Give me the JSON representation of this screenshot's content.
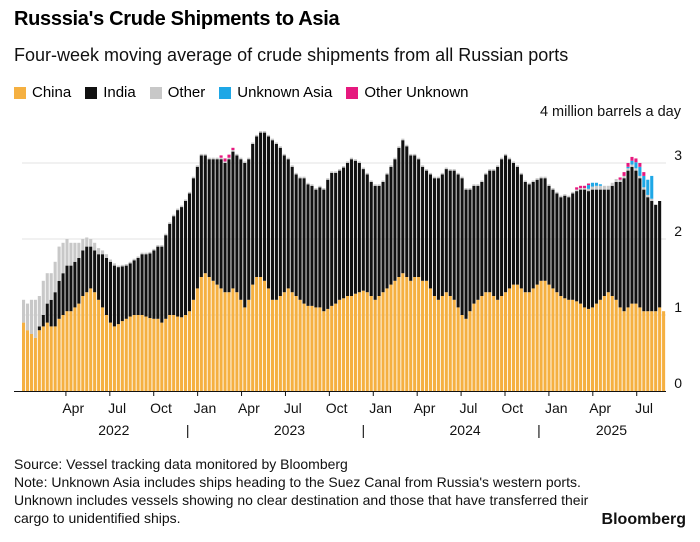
{
  "header": {
    "title": "Russsia's Crude Shipments to Asia",
    "subtitle": "Four-week moving average of crude shipments from all Russian ports"
  },
  "legend": [
    {
      "label": "China",
      "color": "#f5b041"
    },
    {
      "label": "India",
      "color": "#111111"
    },
    {
      "label": "Other",
      "color": "#c8c8c8"
    },
    {
      "label": "Unknown Asia",
      "color": "#1ea7e6"
    },
    {
      "label": "Other Unknown",
      "color": "#e6187e"
    }
  ],
  "unit_label": "4 million barrels a day",
  "footer": {
    "source": "Source: Vessel tracking data monitored by Bloomberg",
    "note": "Note: Unknown Asia includes ships heading to the Suez Canal from Russia's western ports. Unknown includes vessels showing no clear destination and those that have transferred their cargo to unidentified ships."
  },
  "brand": "Bloomberg",
  "chart_data": {
    "type": "bar",
    "stacked": true,
    "bar_interval": "weekly",
    "x_range": [
      "2022-01",
      "2025-08"
    ],
    "ylim": [
      0,
      3.5
    ],
    "y_ticks": [
      "0",
      "1",
      "2",
      "3"
    ],
    "x_tick_labels": [
      "Apr",
      "Jul",
      "Oct",
      "Jan",
      "Apr",
      "Jul",
      "Oct",
      "Jan",
      "Apr",
      "Jul",
      "Oct",
      "Jan",
      "Apr",
      "Jul"
    ],
    "year_labels": [
      "2022",
      "2023",
      "2024",
      "2025"
    ],
    "series": [
      {
        "name": "China",
        "color": "#f5b041",
        "values": [
          0.9,
          0.8,
          0.75,
          0.7,
          0.8,
          0.85,
          0.9,
          0.85,
          0.85,
          0.95,
          1.0,
          1.05,
          1.05,
          1.1,
          1.15,
          1.25,
          1.3,
          1.35,
          1.3,
          1.2,
          1.1,
          1.0,
          0.9,
          0.85,
          0.88,
          0.92,
          0.95,
          0.98,
          1.0,
          1.0,
          1.0,
          0.98,
          0.96,
          0.95,
          0.95,
          0.9,
          0.95,
          1.0,
          1.0,
          0.98,
          0.97,
          1.0,
          1.05,
          1.2,
          1.35,
          1.5,
          1.55,
          1.5,
          1.45,
          1.4,
          1.35,
          1.3,
          1.3,
          1.35,
          1.3,
          1.2,
          1.1,
          1.2,
          1.4,
          1.5,
          1.5,
          1.45,
          1.35,
          1.2,
          1.2,
          1.25,
          1.3,
          1.35,
          1.3,
          1.25,
          1.2,
          1.15,
          1.12,
          1.12,
          1.1,
          1.1,
          1.05,
          1.08,
          1.12,
          1.15,
          1.2,
          1.22,
          1.25,
          1.25,
          1.28,
          1.3,
          1.32,
          1.3,
          1.25,
          1.2,
          1.25,
          1.3,
          1.35,
          1.4,
          1.45,
          1.5,
          1.55,
          1.5,
          1.45,
          1.5,
          1.5,
          1.45,
          1.45,
          1.35,
          1.25,
          1.2,
          1.25,
          1.3,
          1.25,
          1.2,
          1.1,
          1.0,
          0.95,
          1.05,
          1.15,
          1.2,
          1.25,
          1.3,
          1.3,
          1.25,
          1.2,
          1.25,
          1.3,
          1.35,
          1.4,
          1.4,
          1.35,
          1.3,
          1.3,
          1.35,
          1.4,
          1.45,
          1.45,
          1.4,
          1.35,
          1.3,
          1.25,
          1.22,
          1.2,
          1.2,
          1.18,
          1.15,
          1.1,
          1.08,
          1.1,
          1.15,
          1.2,
          1.25,
          1.3,
          1.25,
          1.2,
          1.1,
          1.05,
          1.1,
          1.15,
          1.15,
          1.1,
          1.05,
          1.05,
          1.05,
          1.05,
          1.1,
          1.05
        ]
      },
      {
        "name": "India",
        "color": "#111111",
        "values": [
          0.0,
          0.0,
          0.0,
          0.0,
          0.05,
          0.15,
          0.25,
          0.35,
          0.45,
          0.5,
          0.55,
          0.6,
          0.6,
          0.6,
          0.6,
          0.6,
          0.6,
          0.55,
          0.55,
          0.6,
          0.7,
          0.75,
          0.8,
          0.8,
          0.75,
          0.72,
          0.7,
          0.7,
          0.72,
          0.75,
          0.8,
          0.82,
          0.85,
          0.9,
          0.95,
          1.0,
          1.1,
          1.2,
          1.3,
          1.4,
          1.45,
          1.5,
          1.55,
          1.6,
          1.6,
          1.6,
          1.55,
          1.55,
          1.6,
          1.65,
          1.7,
          1.7,
          1.75,
          1.8,
          1.8,
          1.85,
          1.9,
          1.85,
          1.85,
          1.85,
          1.9,
          1.95,
          2.0,
          2.1,
          2.05,
          1.95,
          1.8,
          1.7,
          1.65,
          1.6,
          1.6,
          1.65,
          1.6,
          1.58,
          1.55,
          1.58,
          1.6,
          1.7,
          1.75,
          1.72,
          1.7,
          1.72,
          1.75,
          1.8,
          1.75,
          1.7,
          1.6,
          1.55,
          1.5,
          1.5,
          1.45,
          1.45,
          1.5,
          1.55,
          1.6,
          1.7,
          1.75,
          1.72,
          1.65,
          1.6,
          1.55,
          1.5,
          1.45,
          1.5,
          1.55,
          1.6,
          1.6,
          1.62,
          1.65,
          1.7,
          1.75,
          1.8,
          1.7,
          1.6,
          1.55,
          1.5,
          1.5,
          1.55,
          1.6,
          1.65,
          1.75,
          1.8,
          1.8,
          1.7,
          1.6,
          1.55,
          1.5,
          1.45,
          1.42,
          1.4,
          1.38,
          1.35,
          1.35,
          1.3,
          1.3,
          1.3,
          1.3,
          1.35,
          1.35,
          1.4,
          1.45,
          1.5,
          1.55,
          1.55,
          1.55,
          1.5,
          1.45,
          1.4,
          1.35,
          1.45,
          1.55,
          1.65,
          1.75,
          1.8,
          1.8,
          1.75,
          1.7,
          1.6,
          1.5,
          1.45,
          1.4,
          1.4
        ]
      },
      {
        "name": "Other",
        "color": "#c8c8c8",
        "values": [
          0.3,
          0.35,
          0.45,
          0.5,
          0.4,
          0.45,
          0.4,
          0.35,
          0.4,
          0.45,
          0.4,
          0.35,
          0.3,
          0.25,
          0.2,
          0.15,
          0.12,
          0.1,
          0.1,
          0.08,
          0.05,
          0.05,
          0.03,
          0.03,
          0.02,
          0.02,
          0.02,
          0.02,
          0.02,
          0.02,
          0.02,
          0.02,
          0.02,
          0.02,
          0.02,
          0.02,
          0.02,
          0.02,
          0.02,
          0.02,
          0.02,
          0.02,
          0.02,
          0.02,
          0.02,
          0.02,
          0.02,
          0.02,
          0.02,
          0.02,
          0.02,
          0.02,
          0.02,
          0.02,
          0.02,
          0.02,
          0.02,
          0.02,
          0.02,
          0.02,
          0.02,
          0.02,
          0.02,
          0.02,
          0.02,
          0.02,
          0.02,
          0.02,
          0.02,
          0.02,
          0.02,
          0.02,
          0.02,
          0.02,
          0.02,
          0.02,
          0.02,
          0.02,
          0.02,
          0.02,
          0.02,
          0.02,
          0.02,
          0.02,
          0.02,
          0.02,
          0.02,
          0.02,
          0.02,
          0.02,
          0.02,
          0.02,
          0.02,
          0.02,
          0.02,
          0.02,
          0.02,
          0.02,
          0.02,
          0.02,
          0.02,
          0.02,
          0.02,
          0.02,
          0.02,
          0.02,
          0.02,
          0.02,
          0.02,
          0.02,
          0.02,
          0.02,
          0.02,
          0.02,
          0.02,
          0.02,
          0.02,
          0.02,
          0.02,
          0.02,
          0.02,
          0.02,
          0.02,
          0.02,
          0.02,
          0.02,
          0.02,
          0.02,
          0.02,
          0.02,
          0.02,
          0.02,
          0.02,
          0.02,
          0.02,
          0.02,
          0.02,
          0.02,
          0.02,
          0.02,
          0.02,
          0.02,
          0.02,
          0.03,
          0.04,
          0.05,
          0.05,
          0.05,
          0.05,
          0.04,
          0.04,
          0.03,
          0.03,
          0.03,
          0.03,
          0.03,
          0.03,
          0.03,
          0.03,
          0.03
        ]
      },
      {
        "name": "Unknown Asia",
        "color": "#1ea7e6",
        "values": [
          0,
          0,
          0,
          0,
          0,
          0,
          0,
          0,
          0,
          0,
          0,
          0,
          0,
          0,
          0,
          0,
          0,
          0,
          0,
          0,
          0,
          0,
          0,
          0,
          0,
          0,
          0,
          0,
          0,
          0,
          0,
          0,
          0,
          0,
          0,
          0,
          0,
          0,
          0,
          0,
          0,
          0,
          0,
          0,
          0,
          0,
          0,
          0,
          0,
          0,
          0,
          0,
          0,
          0,
          0,
          0,
          0,
          0,
          0,
          0,
          0,
          0,
          0,
          0,
          0,
          0,
          0,
          0,
          0,
          0,
          0,
          0,
          0,
          0,
          0,
          0,
          0,
          0,
          0,
          0,
          0,
          0,
          0,
          0,
          0,
          0,
          0,
          0,
          0,
          0,
          0,
          0,
          0,
          0,
          0,
          0,
          0,
          0,
          0,
          0,
          0,
          0,
          0,
          0,
          0,
          0,
          0,
          0,
          0,
          0,
          0,
          0,
          0,
          0,
          0,
          0,
          0,
          0,
          0,
          0,
          0,
          0,
          0,
          0,
          0,
          0,
          0,
          0,
          0,
          0,
          0,
          0,
          0,
          0,
          0,
          0,
          0,
          0,
          0,
          0,
          0,
          0,
          0,
          0.05,
          0.05,
          0.04,
          0.02,
          0,
          0,
          0,
          0,
          0,
          0,
          0.02,
          0.05,
          0.08,
          0.12,
          0.15,
          0.2,
          0.3
        ]
      },
      {
        "name": "Other Unknown",
        "color": "#e6187e",
        "values": [
          0,
          0,
          0,
          0,
          0,
          0,
          0,
          0,
          0,
          0,
          0,
          0,
          0,
          0,
          0,
          0,
          0,
          0,
          0,
          0,
          0,
          0,
          0,
          0,
          0,
          0,
          0,
          0,
          0,
          0,
          0,
          0,
          0,
          0,
          0,
          0,
          0,
          0,
          0,
          0,
          0,
          0,
          0,
          0,
          0,
          0,
          0,
          0,
          0,
          0,
          0.03,
          0.04,
          0.04,
          0.03,
          0,
          0,
          0,
          0,
          0,
          0,
          0,
          0,
          0,
          0,
          0,
          0,
          0,
          0,
          0,
          0,
          0,
          0,
          0,
          0,
          0,
          0,
          0,
          0,
          0,
          0,
          0,
          0,
          0,
          0,
          0,
          0,
          0,
          0,
          0,
          0,
          0,
          0,
          0,
          0,
          0,
          0,
          0,
          0,
          0,
          0,
          0,
          0,
          0,
          0,
          0,
          0,
          0,
          0,
          0,
          0,
          0,
          0,
          0,
          0,
          0,
          0,
          0,
          0,
          0,
          0,
          0,
          0,
          0,
          0,
          0,
          0,
          0,
          0,
          0,
          0,
          0,
          0,
          0,
          0,
          0,
          0,
          0,
          0,
          0,
          0,
          0.03,
          0.03,
          0.03,
          0.02,
          0,
          0,
          0,
          0,
          0,
          0,
          0,
          0.03,
          0.05,
          0.05,
          0.05,
          0.05,
          0.05,
          0.05
        ]
      }
    ]
  }
}
